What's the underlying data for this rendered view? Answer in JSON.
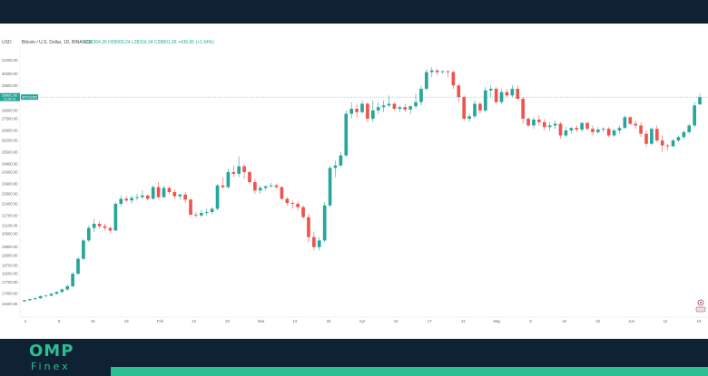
{
  "brand": {
    "logo_main": "OMP",
    "logo_sub": "Finex"
  },
  "header": {
    "symbol": "Bitcoin / U.S. Dollar, 1D, BINANCE",
    "ohlc": "O28364.35 H29000.24 L28316.34 C28801.36 +435.65 (+1.54%)"
  },
  "currency": "USD",
  "colors": {
    "up": "#26a69a",
    "down": "#ef5350",
    "dark": "#0e2233",
    "accent": "#2ebf91"
  },
  "price_label": {
    "value": "28801.36",
    "countdown": "11:54:31",
    "symbol": "BTCUSD"
  },
  "chart_data": {
    "type": "candlestick",
    "title": "Bitcoin / U.S. Dollar, 1D, BINANCE",
    "ylabel": "USD",
    "ylim": [
      15600,
      31800
    ],
    "y_ticks": [
      16400,
      17000,
      17700,
      18200,
      18700,
      19300,
      19800,
      20600,
      21100,
      21700,
      22400,
      23000,
      23600,
      24300,
      24800,
      25500,
      26200,
      26800,
      27500,
      28000,
      28800,
      29500,
      30200,
      31000
    ],
    "x_ticks": [
      "2",
      "9",
      "16",
      "23",
      "Feb",
      "13",
      "20",
      "Mar",
      "13",
      "20",
      "Apr",
      "10",
      "17",
      "24",
      "May",
      "8",
      "15",
      "22",
      "Jun",
      "12",
      "19"
    ],
    "last_close": 28801.36,
    "candles": [
      [
        16545,
        16630,
        16520,
        16615
      ],
      [
        16615,
        16700,
        16580,
        16680
      ],
      [
        16680,
        16760,
        16640,
        16730
      ],
      [
        16730,
        16900,
        16700,
        16860
      ],
      [
        16860,
        16950,
        16810,
        16890
      ],
      [
        16890,
        17050,
        16850,
        17000
      ],
      [
        17000,
        17150,
        16950,
        17110
      ],
      [
        17110,
        17320,
        17060,
        17260
      ],
      [
        17260,
        17550,
        17180,
        17450
      ],
      [
        17450,
        18300,
        17400,
        18200
      ],
      [
        18200,
        19200,
        18150,
        19100
      ],
      [
        19100,
        20300,
        19000,
        20200
      ],
      [
        20200,
        21100,
        20100,
        20950
      ],
      [
        20950,
        21500,
        20700,
        21200
      ],
      [
        21200,
        21350,
        20900,
        21050
      ],
      [
        21050,
        21200,
        20800,
        20950
      ],
      [
        20950,
        21050,
        20650,
        20800
      ],
      [
        20800,
        22500,
        20750,
        22400
      ],
      [
        22400,
        22900,
        22250,
        22700
      ],
      [
        22700,
        22850,
        22500,
        22600
      ],
      [
        22600,
        22900,
        22400,
        22750
      ],
      [
        22750,
        23000,
        22600,
        22800
      ],
      [
        22800,
        23200,
        22700,
        22900
      ],
      [
        22900,
        22950,
        22600,
        22700
      ],
      [
        22700,
        23500,
        22650,
        23400
      ],
      [
        23400,
        23700,
        22700,
        22800
      ],
      [
        22800,
        23500,
        22750,
        23350
      ],
      [
        23350,
        23450,
        22950,
        23100
      ],
      [
        23100,
        23250,
        22700,
        22850
      ],
      [
        22850,
        23000,
        22650,
        22950
      ],
      [
        22950,
        23100,
        22450,
        22650
      ],
      [
        22650,
        22750,
        21650,
        21750
      ],
      [
        21750,
        21900,
        21550,
        21700
      ],
      [
        21700,
        22050,
        21600,
        21850
      ],
      [
        21850,
        22100,
        21700,
        21900
      ],
      [
        21900,
        22200,
        21750,
        22100
      ],
      [
        22100,
        23600,
        22000,
        23500
      ],
      [
        23500,
        24000,
        23300,
        23400
      ],
      [
        23400,
        24500,
        23300,
        24300
      ],
      [
        24300,
        24700,
        24000,
        24200
      ],
      [
        24200,
        25250,
        24000,
        24650
      ],
      [
        24650,
        24800,
        23900,
        24300
      ],
      [
        24300,
        24400,
        23600,
        23700
      ],
      [
        23700,
        23900,
        23000,
        23200
      ],
      [
        23200,
        23500,
        23000,
        23350
      ],
      [
        23350,
        23500,
        23200,
        23450
      ],
      [
        23450,
        23650,
        23350,
        23500
      ],
      [
        23500,
        23600,
        23300,
        23400
      ],
      [
        23400,
        23450,
        22600,
        22700
      ],
      [
        22700,
        22800,
        22300,
        22450
      ],
      [
        22450,
        22600,
        22100,
        22400
      ],
      [
        22400,
        22550,
        22000,
        22200
      ],
      [
        22200,
        22300,
        21500,
        21600
      ],
      [
        21600,
        21800,
        20100,
        20400
      ],
      [
        20400,
        20700,
        19600,
        19800
      ],
      [
        19800,
        20400,
        19600,
        20200
      ],
      [
        20200,
        22500,
        20100,
        22300
      ],
      [
        22300,
        24700,
        22200,
        24550
      ],
      [
        24550,
        25000,
        24000,
        24700
      ],
      [
        24700,
        25500,
        24600,
        25300
      ],
      [
        25300,
        28000,
        25200,
        27800
      ],
      [
        27800,
        28500,
        27500,
        28100
      ],
      [
        28100,
        28400,
        27600,
        27900
      ],
      [
        27900,
        28600,
        27800,
        28400
      ],
      [
        28400,
        28500,
        27300,
        27500
      ],
      [
        27500,
        28600,
        27300,
        28000
      ],
      [
        28000,
        28500,
        27800,
        28200
      ],
      [
        28200,
        28600,
        27900,
        28300
      ],
      [
        28300,
        28900,
        28200,
        28400
      ],
      [
        28400,
        28500,
        28000,
        28100
      ],
      [
        28100,
        28300,
        27900,
        28200
      ],
      [
        28200,
        28400,
        27900,
        28050
      ],
      [
        28050,
        28300,
        27800,
        28250
      ],
      [
        28250,
        29000,
        28100,
        28500
      ],
      [
        28500,
        29500,
        28300,
        29300
      ],
      [
        29300,
        30500,
        29200,
        30300
      ],
      [
        30300,
        30600,
        30000,
        30400
      ],
      [
        30400,
        30500,
        30100,
        30300
      ],
      [
        30300,
        30400,
        30200,
        30350
      ],
      [
        30350,
        30400,
        30000,
        30300
      ],
      [
        30300,
        30400,
        29300,
        29500
      ],
      [
        29500,
        29600,
        28500,
        28800
      ],
      [
        28800,
        28900,
        27400,
        27500
      ],
      [
        27500,
        27800,
        27300,
        27650
      ],
      [
        27650,
        28600,
        27500,
        28400
      ],
      [
        28400,
        28500,
        27800,
        28000
      ],
      [
        28000,
        29400,
        27900,
        29200
      ],
      [
        29200,
        29500,
        28800,
        29300
      ],
      [
        29300,
        29400,
        28400,
        28500
      ],
      [
        28500,
        29300,
        28400,
        29100
      ],
      [
        29100,
        29300,
        28800,
        28900
      ],
      [
        28900,
        29500,
        28800,
        29300
      ],
      [
        29300,
        29500,
        28600,
        28700
      ],
      [
        28700,
        28800,
        27200,
        27500
      ],
      [
        27500,
        27600,
        27000,
        27100
      ],
      [
        27100,
        27600,
        26900,
        27450
      ],
      [
        27450,
        27700,
        27100,
        27300
      ],
      [
        27300,
        27500,
        26800,
        27000
      ],
      [
        27000,
        27300,
        26800,
        27100
      ],
      [
        27100,
        27400,
        26900,
        27200
      ],
      [
        27200,
        27300,
        26300,
        26500
      ],
      [
        26500,
        27000,
        26400,
        26800
      ],
      [
        26800,
        27000,
        26600,
        26950
      ],
      [
        26950,
        27100,
        26700,
        26850
      ],
      [
        26850,
        27300,
        26700,
        27250
      ],
      [
        27250,
        27300,
        26800,
        26900
      ],
      [
        26900,
        27100,
        26500,
        26700
      ],
      [
        26700,
        27000,
        26600,
        26850
      ],
      [
        26850,
        27000,
        26700,
        26900
      ],
      [
        26900,
        27000,
        26400,
        26500
      ],
      [
        26500,
        26900,
        26400,
        26800
      ],
      [
        26800,
        27100,
        26600,
        26950
      ],
      [
        26950,
        27700,
        26900,
        27600
      ],
      [
        27600,
        27650,
        27100,
        27200
      ],
      [
        27200,
        27400,
        26900,
        27100
      ],
      [
        27100,
        27300,
        26400,
        26600
      ],
      [
        26600,
        26800,
        25800,
        26000
      ],
      [
        26000,
        27000,
        25900,
        26900
      ],
      [
        26900,
        27100,
        26100,
        26200
      ],
      [
        26200,
        26500,
        25500,
        25900
      ],
      [
        25900,
        26000,
        25600,
        25850
      ],
      [
        25850,
        26300,
        25800,
        26200
      ],
      [
        26200,
        26500,
        26100,
        26400
      ],
      [
        26400,
        26800,
        26300,
        26700
      ],
      [
        26700,
        27200,
        26600,
        27100
      ],
      [
        27100,
        28500,
        27000,
        28300
      ],
      [
        28364.35,
        29000.24,
        28316.34,
        28801.36
      ]
    ]
  }
}
